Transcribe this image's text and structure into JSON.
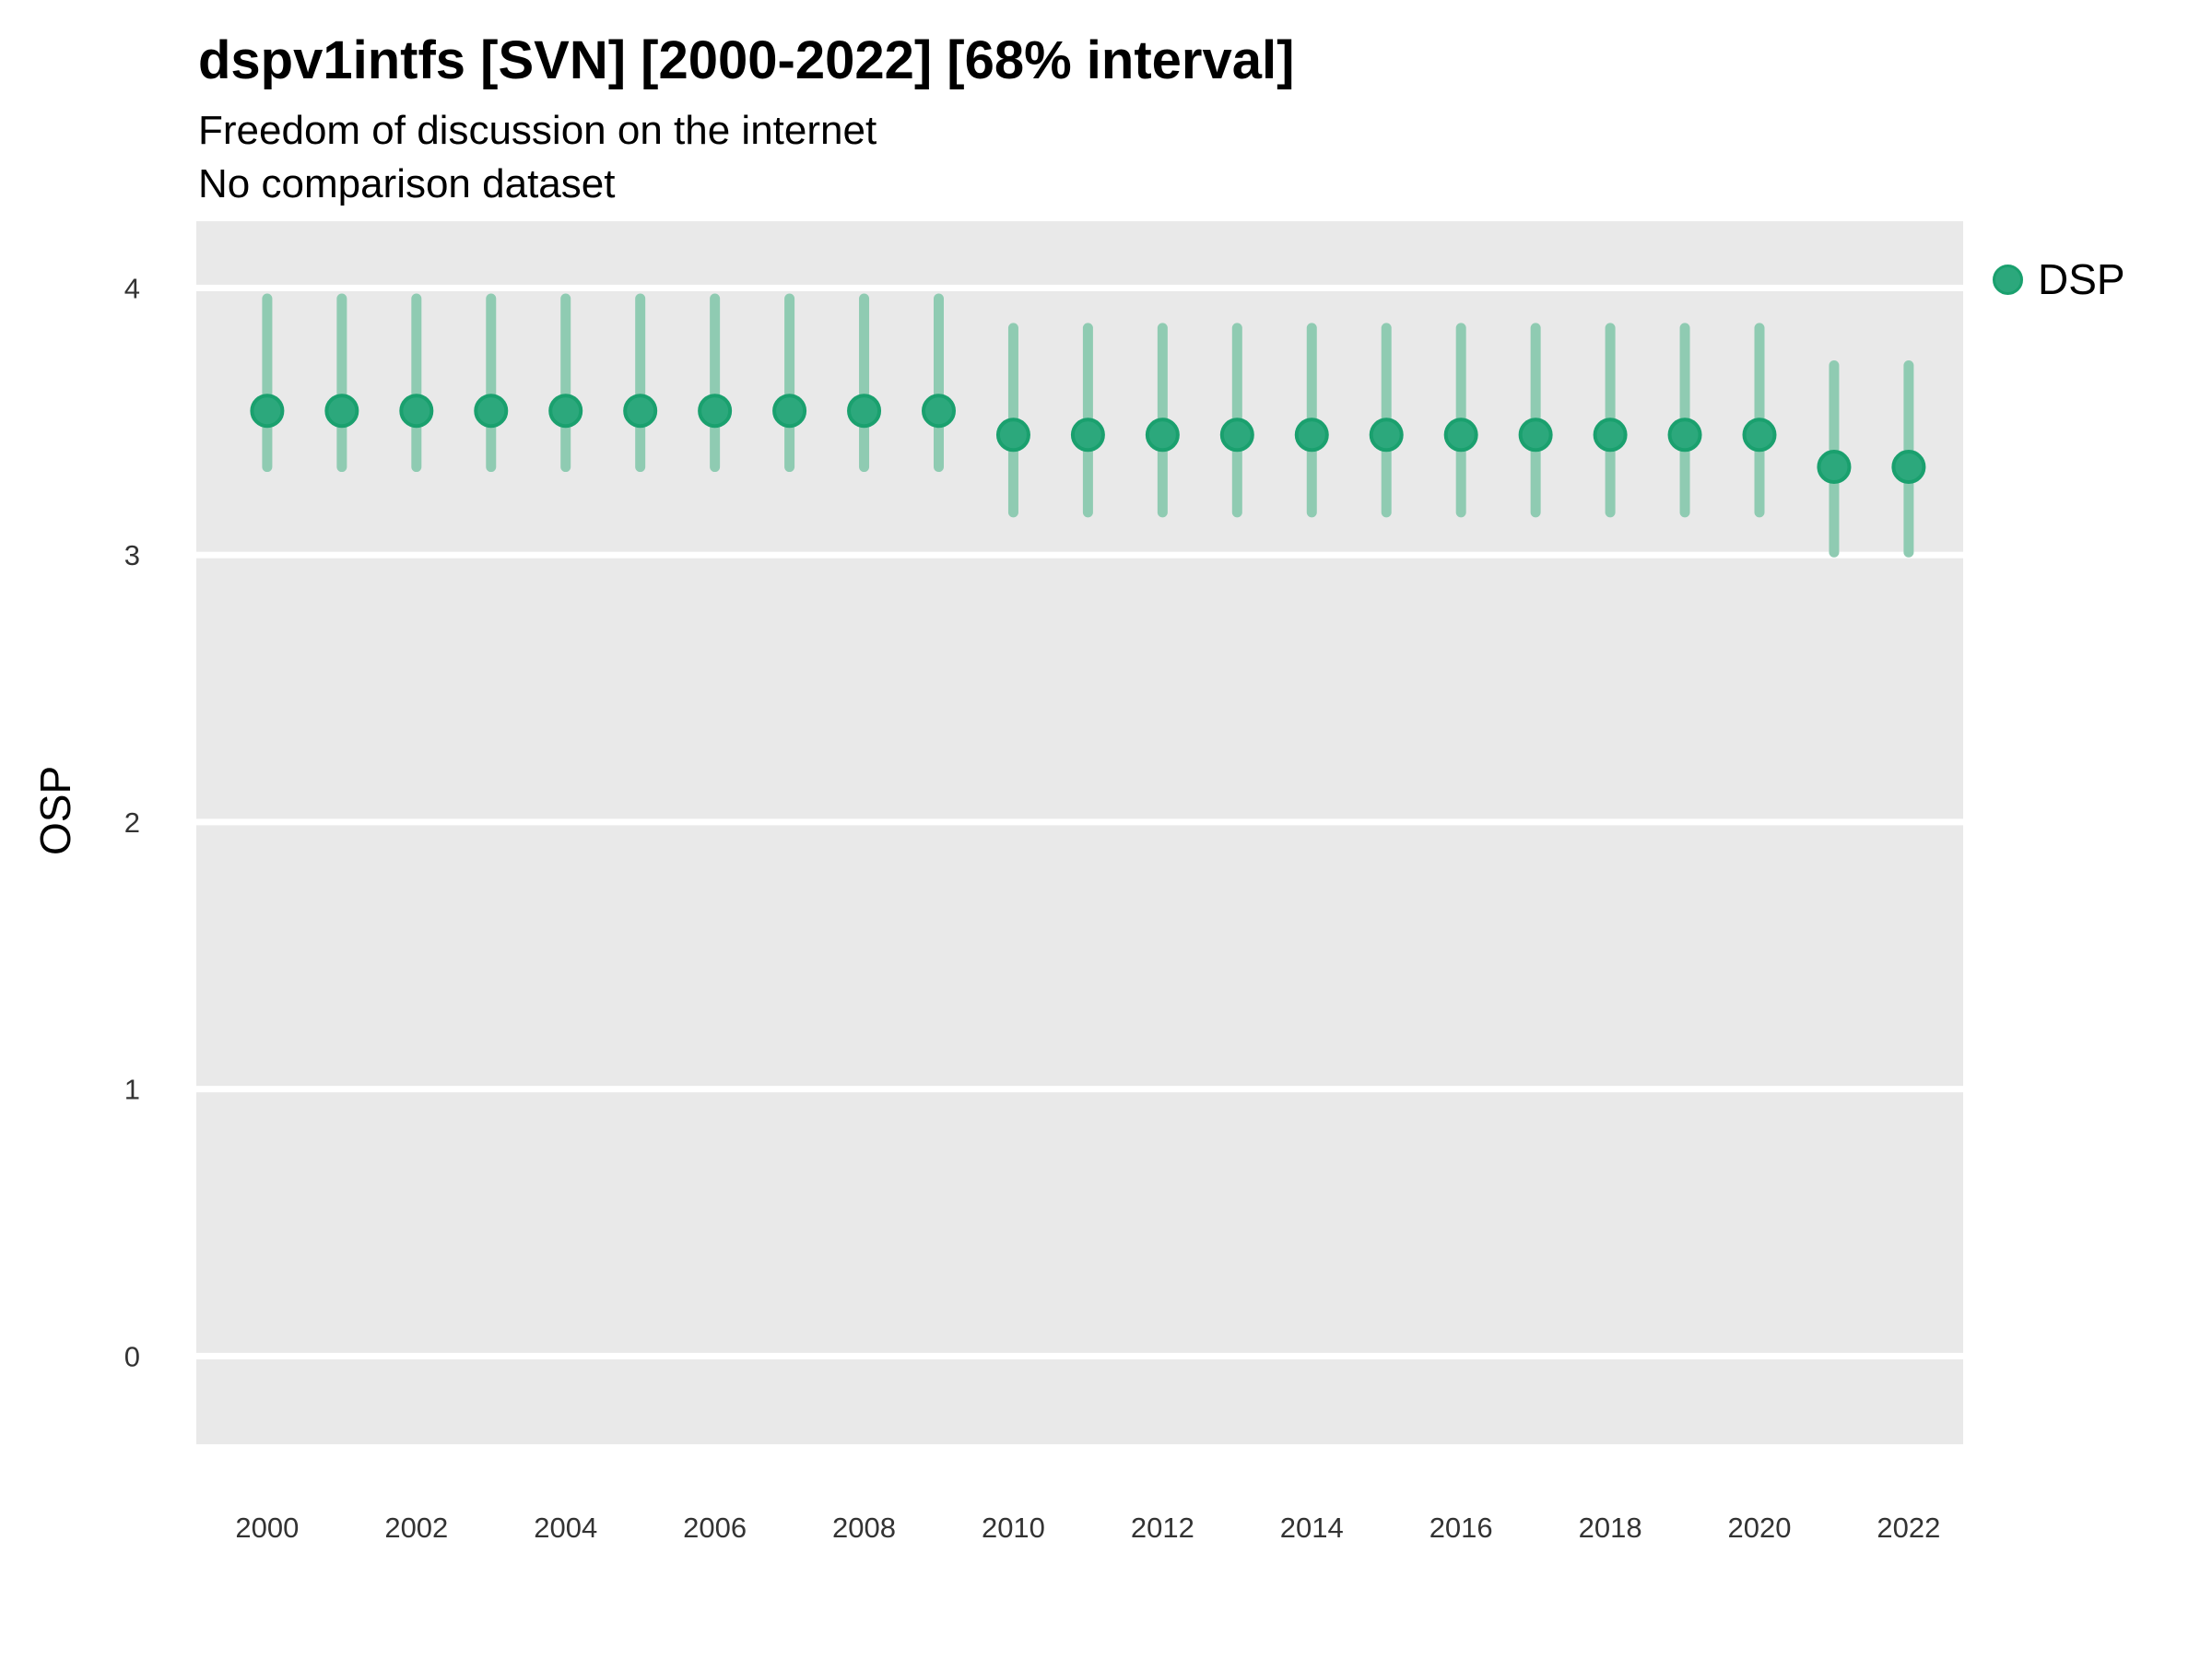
{
  "figure": {
    "title": "dspv1intfs [SVN] [2000-2022] [68% interval]",
    "subtitle_line1": "Freedom of discussion on the internet",
    "subtitle_line2": "No comparison dataset",
    "y_axis_title": "OSP",
    "legend": {
      "label": "DSP",
      "marker": "circle-icon"
    }
  },
  "chart_data": {
    "type": "pointrange",
    "title": "dspv1intfs [SVN] [2000-2022] [68% interval]",
    "subtitle": [
      "Freedom of discussion on the internet",
      "No comparison dataset"
    ],
    "interval_label": "68% interval",
    "xlabel": "",
    "ylabel": "OSP",
    "x": [
      2000,
      2001,
      2002,
      2003,
      2004,
      2005,
      2006,
      2007,
      2008,
      2009,
      2010,
      2011,
      2012,
      2013,
      2014,
      2015,
      2016,
      2017,
      2018,
      2019,
      2020,
      2021,
      2022
    ],
    "series": [
      {
        "name": "DSP",
        "estimate": [
          3.54,
          3.54,
          3.54,
          3.54,
          3.54,
          3.54,
          3.54,
          3.54,
          3.54,
          3.54,
          3.45,
          3.45,
          3.45,
          3.45,
          3.45,
          3.45,
          3.45,
          3.45,
          3.45,
          3.45,
          3.45,
          3.33,
          3.33
        ],
        "lower": [
          3.33,
          3.33,
          3.33,
          3.33,
          3.33,
          3.33,
          3.33,
          3.33,
          3.33,
          3.33,
          3.16,
          3.16,
          3.16,
          3.16,
          3.16,
          3.16,
          3.16,
          3.16,
          3.16,
          3.16,
          3.16,
          3.01,
          3.01
        ],
        "upper": [
          3.96,
          3.96,
          3.96,
          3.96,
          3.96,
          3.96,
          3.96,
          3.96,
          3.96,
          3.96,
          3.85,
          3.85,
          3.85,
          3.85,
          3.85,
          3.85,
          3.85,
          3.85,
          3.85,
          3.85,
          3.85,
          3.71,
          3.71
        ]
      }
    ],
    "yticks": [
      0,
      1,
      2,
      3,
      4
    ],
    "xticks": [
      2000,
      2002,
      2004,
      2006,
      2008,
      2010,
      2012,
      2014,
      2016,
      2018,
      2020,
      2022
    ],
    "ylim": [
      -0.33,
      4.25
    ],
    "xlim": [
      1999.05,
      2022.73
    ],
    "grid": "major-horizontal-only",
    "legend_position": "right",
    "colors": {
      "point_fill": "#2ca87c",
      "point_stroke": "#1aa06e",
      "interval_line": "#8fcbb2",
      "panel_background": "#e9e9e9",
      "gridline": "#ffffff",
      "tick_text": "#333333"
    }
  }
}
